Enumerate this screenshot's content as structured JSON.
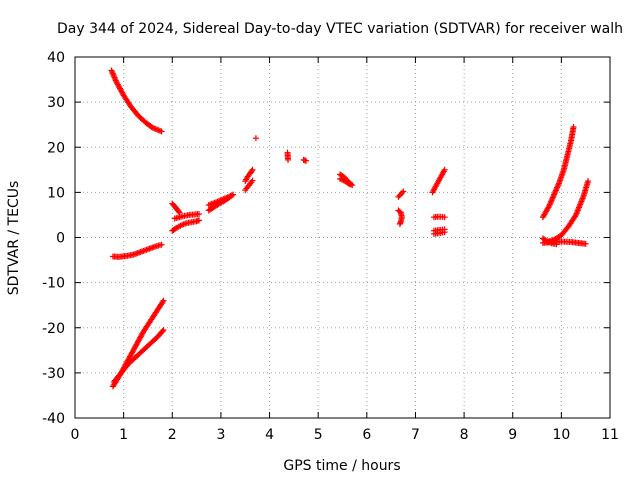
{
  "chart_data": {
    "type": "scatter",
    "title": "Day 344 of 2024, Sidereal Day-to-day VTEC variation (SDTVAR) for receiver walh",
    "xlabel": "GPS time / hours",
    "ylabel": "SDTVAR / TECUs",
    "xlim": [
      0,
      11
    ],
    "ylim": [
      -40,
      40
    ],
    "xticks": [
      0,
      1,
      2,
      3,
      4,
      5,
      6,
      7,
      8,
      9,
      10,
      11
    ],
    "yticks": [
      -40,
      -30,
      -20,
      -10,
      0,
      10,
      20,
      30,
      40
    ],
    "grid": true,
    "marker": "plus",
    "marker_color": "#ff0000",
    "segments": [
      {
        "x": [
          0.75,
          0.85,
          1.0,
          1.15,
          1.3,
          1.45,
          1.6,
          1.78
        ],
        "y": [
          37,
          34.5,
          31.5,
          29,
          27,
          25.5,
          24.3,
          23.5
        ]
      },
      {
        "x": [
          0.78,
          0.9,
          1.05,
          1.2,
          1.35,
          1.5,
          1.65,
          1.78
        ],
        "y": [
          -4.2,
          -4.3,
          -4.1,
          -3.8,
          -3.2,
          -2.6,
          -2.0,
          -1.6
        ]
      },
      {
        "x": [
          0.78,
          0.95,
          1.1,
          1.25,
          1.4,
          1.55,
          1.7,
          1.82
        ],
        "y": [
          -33,
          -30,
          -27,
          -24,
          -21,
          -18.5,
          -16,
          -14
        ]
      },
      {
        "x": [
          0.8,
          0.95,
          1.1,
          1.25,
          1.4,
          1.55,
          1.7,
          1.82
        ],
        "y": [
          -32,
          -30,
          -28,
          -26.5,
          -25,
          -23.5,
          -22,
          -20.5
        ]
      },
      {
        "x": [
          2.0,
          2.1,
          2.2,
          2.3,
          2.4,
          2.5,
          2.55
        ],
        "y": [
          1.5,
          2.2,
          2.8,
          3.2,
          3.4,
          3.6,
          3.8
        ]
      },
      {
        "x": [
          2.05,
          2.15,
          2.25,
          2.35,
          2.45,
          2.55
        ],
        "y": [
          4.2,
          4.5,
          4.8,
          5.0,
          5.1,
          5.2
        ]
      },
      {
        "x": [
          2.0,
          2.08,
          2.15
        ],
        "y": [
          7.5,
          6.5,
          5.5
        ]
      },
      {
        "x": [
          2.75,
          2.85,
          2.95,
          3.05,
          3.15,
          3.25
        ],
        "y": [
          6.0,
          6.7,
          7.4,
          8.0,
          8.7,
          9.5
        ]
      },
      {
        "x": [
          2.75,
          2.9,
          3.05,
          3.2
        ],
        "y": [
          7.2,
          7.8,
          8.5,
          9.2
        ]
      },
      {
        "x": [
          3.5,
          3.55,
          3.6,
          3.65
        ],
        "y": [
          12.5,
          13.5,
          14.2,
          15.0
        ]
      },
      {
        "x": [
          3.5,
          3.55,
          3.6,
          3.65
        ],
        "y": [
          10.5,
          11.2,
          11.9,
          12.6
        ]
      },
      {
        "x": [
          3.72
        ],
        "y": [
          22
        ]
      },
      {
        "x": [
          4.37,
          4.38
        ],
        "y": [
          18.8,
          17.2
        ]
      },
      {
        "x": [
          4.7,
          4.75
        ],
        "y": [
          17.2,
          17.0
        ]
      },
      {
        "x": [
          5.45,
          5.5,
          5.55,
          5.6,
          5.65,
          5.7
        ],
        "y": [
          14.0,
          13.6,
          13.2,
          12.6,
          12.0,
          11.6
        ]
      },
      {
        "x": [
          5.45,
          5.55,
          5.65
        ],
        "y": [
          13.0,
          12.5,
          11.8
        ]
      },
      {
        "x": [
          6.65,
          6.7,
          6.75
        ],
        "y": [
          9.0,
          9.6,
          10.2
        ]
      },
      {
        "x": [
          6.65,
          6.7,
          6.72,
          6.7,
          6.68
        ],
        "y": [
          6.0,
          5.5,
          4.5,
          3.5,
          3.0
        ]
      },
      {
        "x": [
          7.35,
          7.4,
          7.45,
          7.5,
          7.55,
          7.6
        ],
        "y": [
          10.0,
          11.0,
          12.0,
          13.0,
          14.0,
          15.0
        ]
      },
      {
        "x": [
          7.38,
          7.45,
          7.52,
          7.6
        ],
        "y": [
          4.5,
          4.6,
          4.6,
          4.5
        ]
      },
      {
        "x": [
          7.38,
          7.45,
          7.52,
          7.6
        ],
        "y": [
          1.5,
          1.6,
          1.7,
          1.8
        ]
      },
      {
        "x": [
          7.38,
          7.45,
          7.52,
          7.6
        ],
        "y": [
          0.8,
          0.9,
          1.0,
          1.2
        ]
      },
      {
        "x": [
          9.62,
          9.75,
          9.85,
          9.95,
          10.05,
          10.12,
          10.2,
          10.25
        ],
        "y": [
          4.5,
          7.0,
          9.5,
          12.0,
          15.0,
          18.0,
          21.5,
          24.5
        ]
      },
      {
        "x": [
          9.7,
          9.85,
          10.0,
          10.15,
          10.3,
          10.45,
          10.55
        ],
        "y": [
          -1.0,
          -0.5,
          0.5,
          2.5,
          5.0,
          9.0,
          12.5
        ]
      },
      {
        "x": [
          9.62,
          9.8,
          10.0,
          10.2,
          10.35,
          10.5
        ],
        "y": [
          -1.2,
          -1.0,
          -0.9,
          -1.0,
          -1.2,
          -1.4
        ]
      },
      {
        "x": [
          9.62,
          9.7,
          9.8,
          9.9
        ],
        "y": [
          -0.2,
          -0.8,
          -1.3,
          -1.5
        ]
      }
    ]
  }
}
